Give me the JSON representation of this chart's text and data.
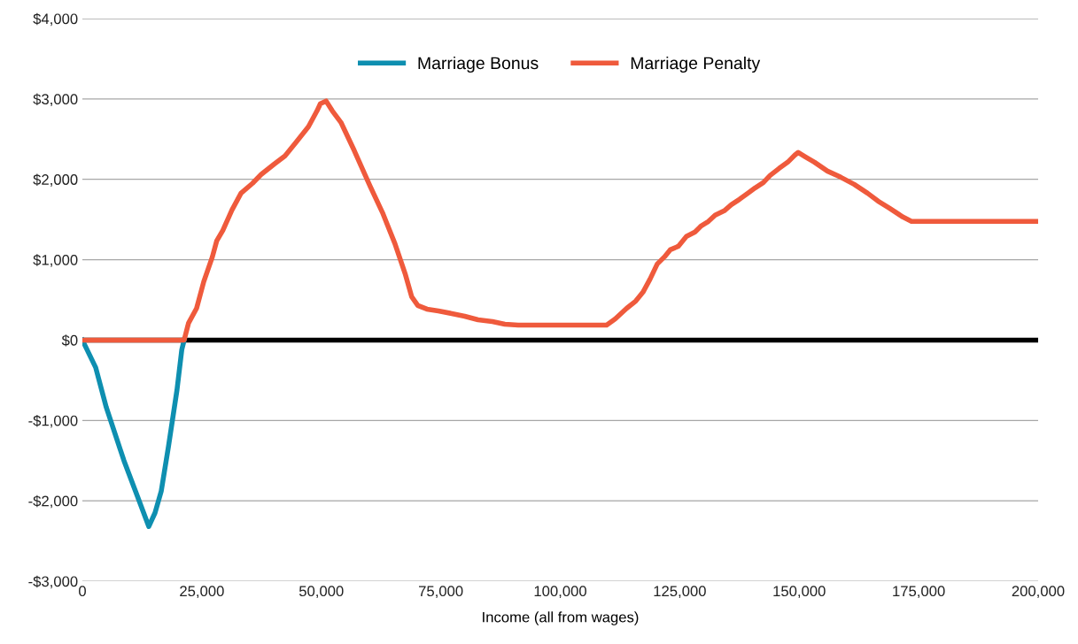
{
  "chart_data": {
    "type": "line",
    "xlabel": "Income (all from wages)",
    "xlim": [
      0,
      200000
    ],
    "ylim": [
      -3000,
      4000
    ],
    "xticks": [
      {
        "value": 0,
        "label": "0"
      },
      {
        "value": 25000,
        "label": "25,000"
      },
      {
        "value": 50000,
        "label": "50,000"
      },
      {
        "value": 75000,
        "label": "75,000"
      },
      {
        "value": 100000,
        "label": "100,000"
      },
      {
        "value": 125000,
        "label": "125,000"
      },
      {
        "value": 150000,
        "label": "150,000"
      },
      {
        "value": 175000,
        "label": "175,000"
      },
      {
        "value": 200000,
        "label": "200,000"
      }
    ],
    "yticks": [
      {
        "value": -3000,
        "label": "-$3,000"
      },
      {
        "value": -2000,
        "label": "-$2,000"
      },
      {
        "value": -1000,
        "label": "-$1,000"
      },
      {
        "value": 0,
        "label": "$0"
      },
      {
        "value": 1000,
        "label": "$1,000"
      },
      {
        "value": 2000,
        "label": "$2,000"
      },
      {
        "value": 3000,
        "label": "$3,000"
      },
      {
        "value": 4000,
        "label": "$4,000"
      }
    ],
    "grid": "y",
    "legend": "top",
    "line_style": "solid",
    "marker": "none",
    "ref_lines": [
      {
        "axis": "y",
        "value": 0,
        "color": "#000000"
      }
    ],
    "series": [
      {
        "name": "Marriage Bonus",
        "color": "#0e8fb0",
        "x": [
          0,
          2780,
          5000,
          8700,
          11500,
          13900,
          15200,
          16500,
          18000,
          19800,
          20800,
          21300
        ],
        "values": [
          0,
          -341,
          -837,
          -1500,
          -1940,
          -2320,
          -2150,
          -1880,
          -1330,
          -620,
          -120,
          0
        ]
      },
      {
        "name": "Marriage Penalty",
        "color": "#ef5a3c",
        "x": [
          0,
          21300,
          22200,
          23900,
          25400,
          27200,
          28100,
          29400,
          31300,
          33200,
          35600,
          37400,
          40200,
          42400,
          44800,
          47300,
          49100,
          49800,
          51000,
          52300,
          54100,
          56900,
          60200,
          62800,
          65400,
          67600,
          68900,
          70200,
          72100,
          74500,
          77300,
          80000,
          82800,
          85800,
          88400,
          91200,
          109700,
          111500,
          113900,
          115800,
          117300,
          118800,
          120300,
          121800,
          123000,
          124700,
          126400,
          128200,
          129500,
          131000,
          132400,
          134300,
          135800,
          137500,
          139300,
          140800,
          142500,
          143900,
          145800,
          147600,
          149100,
          149800,
          151300,
          153200,
          155900,
          158700,
          161500,
          164300,
          166500,
          168900,
          171700,
          173500,
          200000
        ],
        "values": [
          0,
          0,
          209,
          396,
          727,
          1035,
          1233,
          1366,
          1619,
          1828,
          1950,
          2060,
          2192,
          2291,
          2467,
          2654,
          2852,
          2941,
          2974,
          2852,
          2709,
          2357,
          1916,
          1586,
          1200,
          815,
          540,
          430,
          385,
          363,
          330,
          297,
          253,
          231,
          198,
          187,
          187,
          264,
          396,
          485,
          595,
          760,
          947,
          1035,
          1123,
          1167,
          1289,
          1344,
          1421,
          1476,
          1553,
          1608,
          1685,
          1751,
          1828,
          1894,
          1960,
          2048,
          2136,
          2213,
          2302,
          2335,
          2280,
          2213,
          2103,
          2026,
          1938,
          1828,
          1729,
          1641,
          1531,
          1476,
          1476
        ]
      }
    ]
  }
}
